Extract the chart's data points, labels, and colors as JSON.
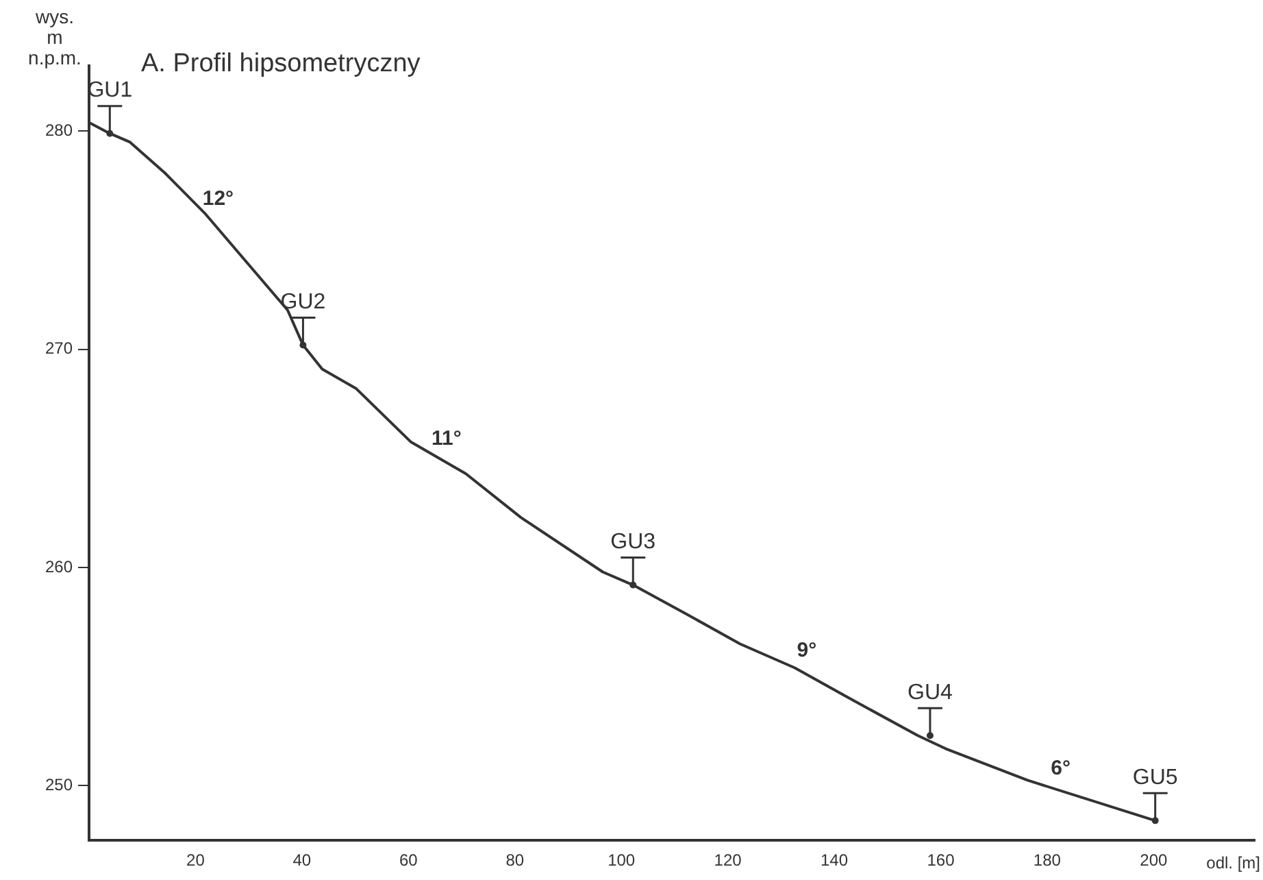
{
  "chart_data": {
    "type": "line",
    "title": "A. Profil hipsometryczny",
    "xlabel": "odl. [m]",
    "ylabel": "wys.\nm\nn.p.m.",
    "xlim": [
      0,
      219
    ],
    "xticks": [
      20,
      40,
      60,
      80,
      100,
      120,
      140,
      160,
      180,
      200
    ],
    "ylim": [
      247.5,
      283
    ],
    "yticks": [
      250,
      260,
      270,
      280
    ],
    "grid": false,
    "legend": false,
    "series": [
      {
        "color": "#333333",
        "x": [
          0,
          3.9,
          7.7,
          14.2,
          21.9,
          29.6,
          37.3,
          40.2,
          43.8,
          50.2,
          60.5,
          70.8,
          81.1,
          96.5,
          102.2,
          112,
          122.3,
          132.6,
          142.9,
          155.7,
          160.9,
          176.3,
          200.3
        ],
        "values": [
          280.4,
          279.9,
          279.5,
          278.1,
          276.2,
          274,
          271.8,
          270.2,
          269.1,
          268.2,
          265.75,
          264.3,
          262.3,
          259.8,
          259.2,
          257.9,
          256.5,
          255.4,
          254,
          252.3,
          251.7,
          250.25,
          248.4
        ]
      },
      {
        "type": "scatter",
        "color": "#333333",
        "x": [
          3.9,
          40.2,
          102.2,
          158,
          200.3
        ],
        "values": [
          279.9,
          270.2,
          259.2,
          252.3,
          248.4
        ],
        "value_labels": [
          "GU1",
          "GU2",
          "GU3",
          "GU4",
          "GU5"
        ]
      }
    ],
    "annotations": [
      {
        "text": "12°",
        "x": 22.7,
        "y": 276
      },
      {
        "text": "11°",
        "x": 65.6,
        "y": 265
      },
      {
        "text": "9°",
        "x": 133.3,
        "y": 255.3
      },
      {
        "text": "6°",
        "x": 181,
        "y": 249.9
      }
    ]
  }
}
